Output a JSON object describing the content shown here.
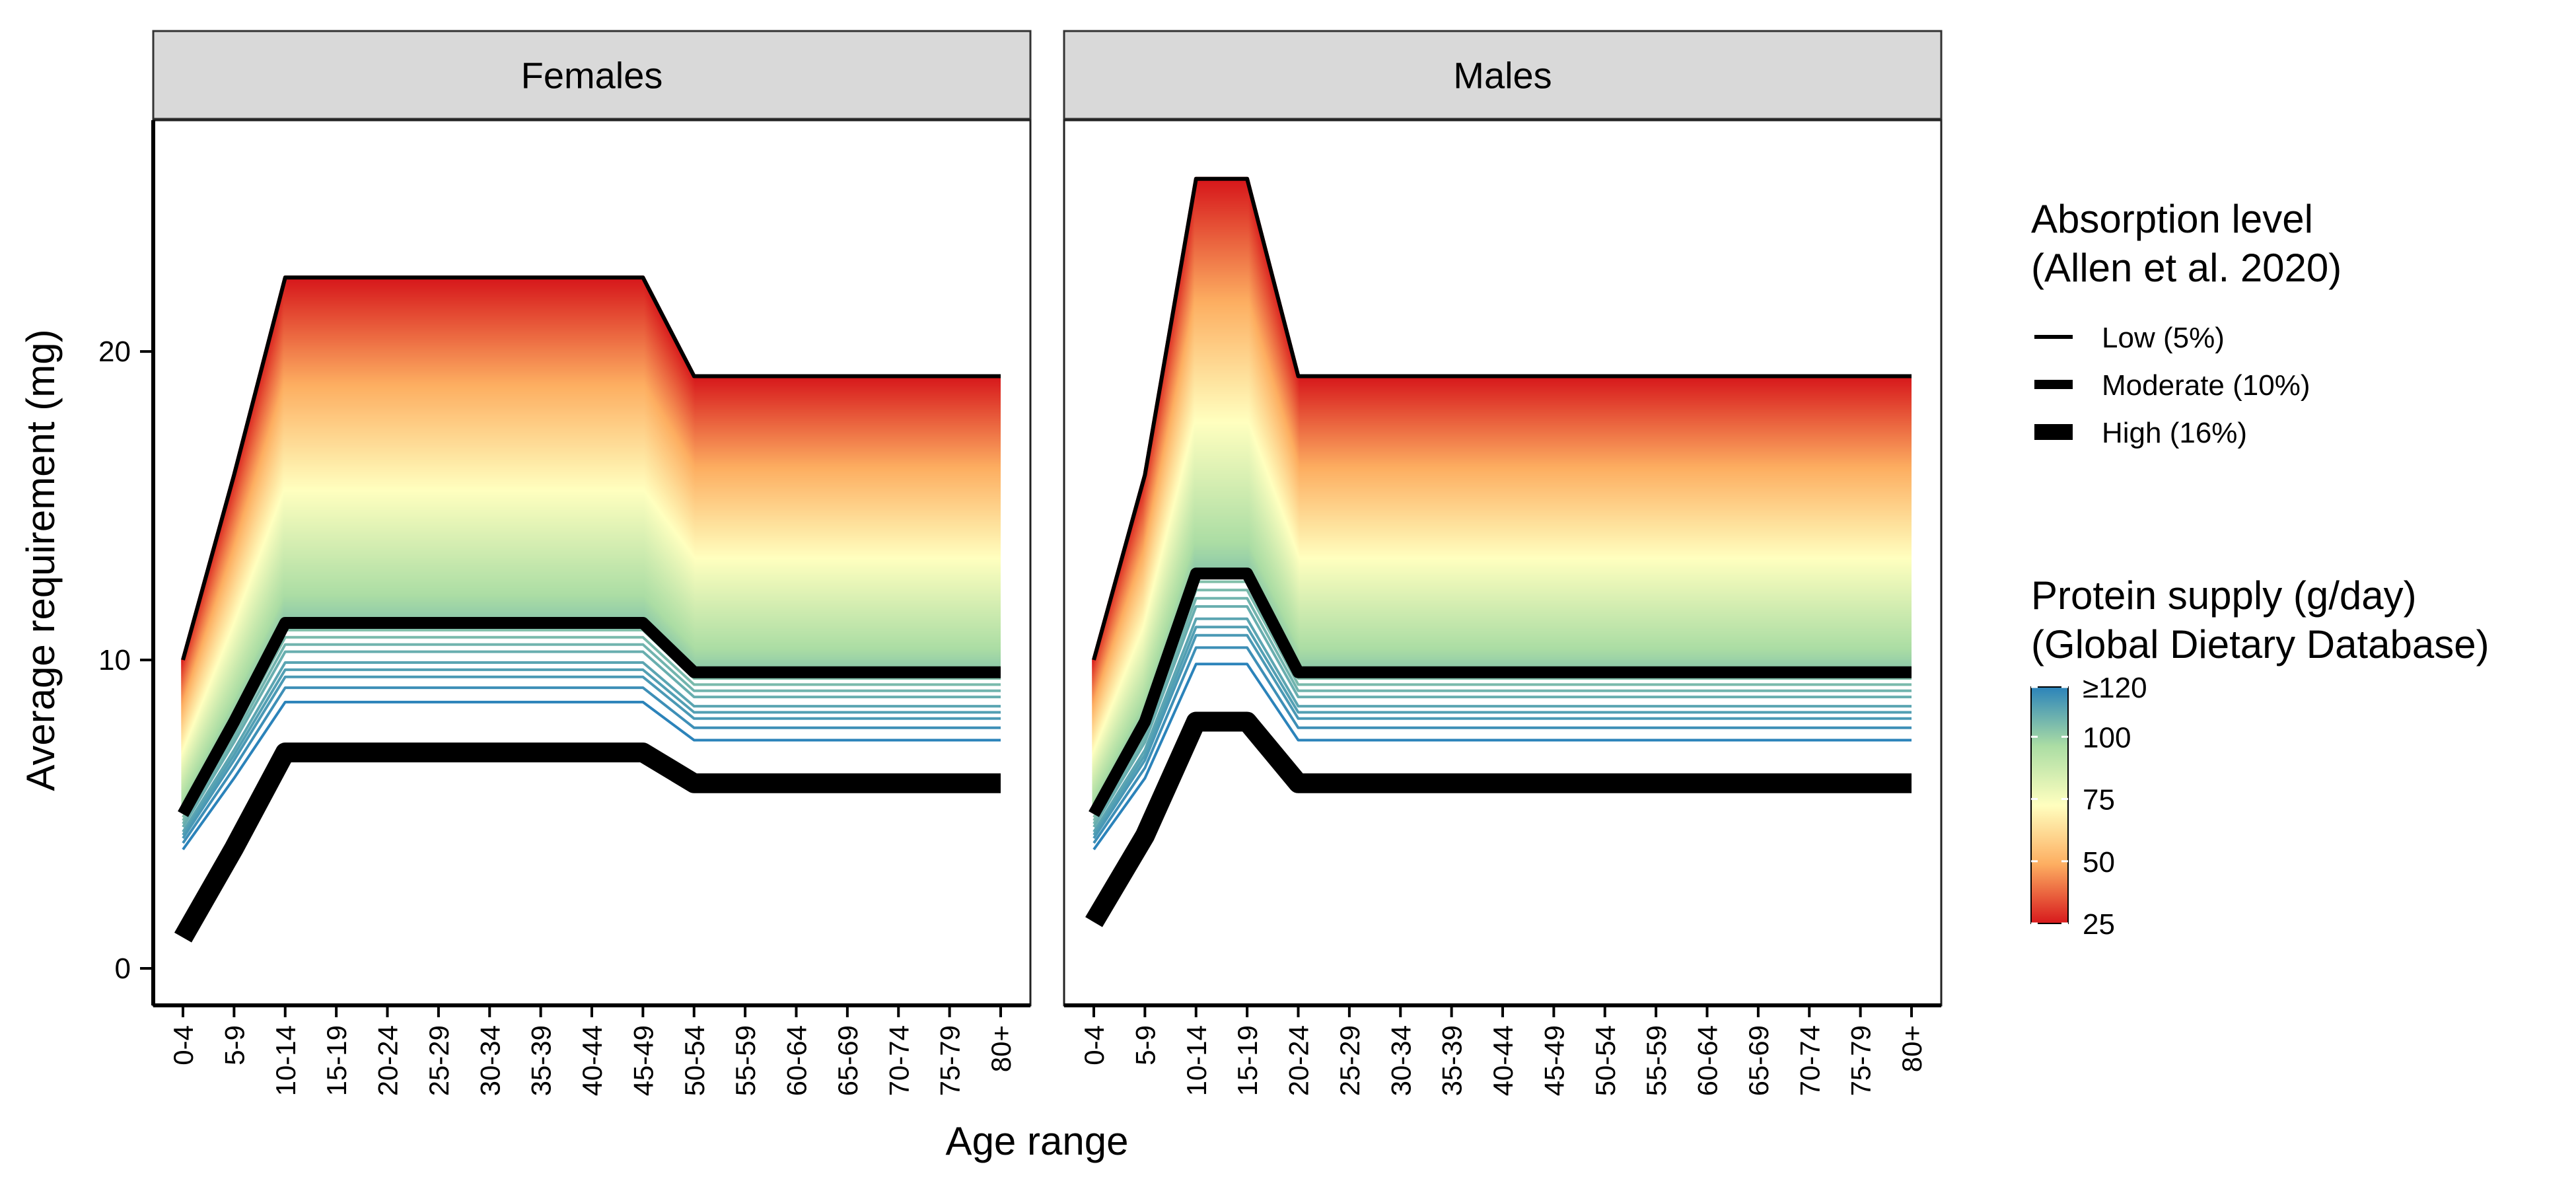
{
  "chart_data": {
    "type": "line",
    "xlabel": "Age range",
    "ylabel": "Average requirement (mg)",
    "categories": [
      "0-4",
      "5-9",
      "10-14",
      "15-19",
      "20-24",
      "25-29",
      "30-34",
      "35-39",
      "40-44",
      "45-49",
      "50-54",
      "55-59",
      "60-64",
      "65-69",
      "70-74",
      "75-79",
      "80+"
    ],
    "ylim": [
      -1.2,
      27.5
    ],
    "yticks": [
      0,
      10,
      20
    ],
    "grid": false,
    "panels": [
      {
        "title": "Females",
        "series": [
          {
            "absorption": "Low (5%)",
            "values": [
              10.0,
              16.0,
              22.4,
              22.4,
              22.4,
              22.4,
              22.4,
              22.4,
              22.4,
              22.4,
              19.2,
              19.2,
              19.2,
              19.2,
              19.2,
              19.2,
              19.2
            ]
          },
          {
            "absorption": "Moderate (10%)",
            "values": [
              5.0,
              8.0,
              11.2,
              11.2,
              11.2,
              11.2,
              11.2,
              11.2,
              11.2,
              11.2,
              9.6,
              9.6,
              9.6,
              9.6,
              9.6,
              9.6,
              9.6
            ]
          },
          {
            "absorption": "High (16%)",
            "values": [
              1.0,
              3.9,
              7.0,
              7.0,
              7.0,
              7.0,
              7.0,
              7.0,
              7.0,
              7.0,
              6.0,
              6.0,
              6.0,
              6.0,
              6.0,
              6.0,
              6.0
            ]
          }
        ]
      },
      {
        "title": "Males",
        "series": [
          {
            "absorption": "Low (5%)",
            "values": [
              10.0,
              16.0,
              25.6,
              25.6,
              19.2,
              19.2,
              19.2,
              19.2,
              19.2,
              19.2,
              19.2,
              19.2,
              19.2,
              19.2,
              19.2,
              19.2,
              19.2
            ]
          },
          {
            "absorption": "Moderate (10%)",
            "values": [
              5.0,
              8.0,
              12.8,
              12.8,
              9.6,
              9.6,
              9.6,
              9.6,
              9.6,
              9.6,
              9.6,
              9.6,
              9.6,
              9.6,
              9.6,
              9.6,
              9.6
            ]
          },
          {
            "absorption": "High (16%)",
            "values": [
              1.5,
              4.3,
              8.0,
              8.0,
              6.0,
              6.0,
              6.0,
              6.0,
              6.0,
              6.0,
              6.0,
              6.0,
              6.0,
              6.0,
              6.0,
              6.0,
              6.0
            ]
          }
        ]
      }
    ],
    "protein_supply_requirements_mg": [
      19.1,
      18.9,
      18.6,
      18.4,
      18.2,
      18.0,
      17.8,
      17.6,
      17.4,
      17.2,
      17.0,
      16.8,
      16.6,
      16.4,
      16.3,
      16.1,
      15.9,
      15.6,
      15.3,
      15.0,
      14.6,
      14.2,
      13.8,
      13.4,
      13.0,
      12.8,
      12.5,
      12.2,
      11.9,
      11.6,
      11.3,
      11.0,
      10.8,
      10.6,
      10.4,
      10.2,
      9.95,
      9.8,
      9.6,
      9.4,
      9.2,
      9.0,
      8.8,
      8.5,
      8.3,
      8.1,
      7.8,
      7.4
    ],
    "legend": {
      "absorption": {
        "title_lines": [
          "Absorption level",
          "(Allen et al. 2020)"
        ],
        "items": [
          {
            "label": "Low (5%)",
            "level": "low"
          },
          {
            "label": "Moderate (10%)",
            "level": "moderate"
          },
          {
            "label": "High (16%)",
            "level": "high"
          }
        ]
      },
      "protein": {
        "title_lines": [
          "Protein supply (g/day)",
          "(Global Dietary Database)"
        ],
        "range": [
          25,
          120
        ],
        "ticks": [
          {
            "label": "≥120",
            "value": 120
          },
          {
            "label": "100",
            "value": 100
          },
          {
            "label": "75",
            "value": 75
          },
          {
            "label": "50",
            "value": 50
          },
          {
            "label": "25",
            "value": 25
          }
        ],
        "colors": [
          "#d7191c",
          "#fdae61",
          "#ffffbf",
          "#abdda4",
          "#2b83ba"
        ]
      }
    }
  }
}
